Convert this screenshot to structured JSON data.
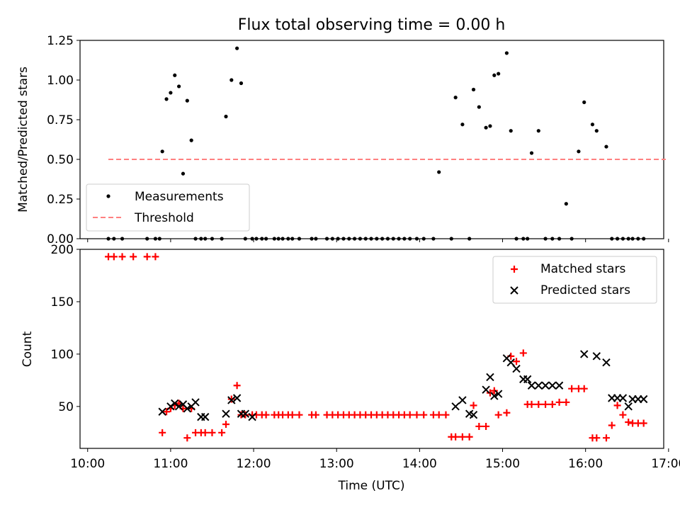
{
  "chart_data": [
    {
      "type": "scatter",
      "title": "Flux total observing time = 0.00 h",
      "xlabel": "",
      "ylabel": "Matched/Predicted stars",
      "xlim_minutes": [
        594.5,
        1016.5
      ],
      "ylim": [
        0,
        1.25
      ],
      "x_ticks_minutes": [
        600,
        660,
        720,
        780,
        840,
        900,
        960,
        1020
      ],
      "y_ticks": [
        0.0,
        0.25,
        0.5,
        0.75,
        1.0,
        1.25
      ],
      "y_tick_labels": [
        "0.00",
        "0.25",
        "0.50",
        "0.75",
        "1.00",
        "1.25"
      ],
      "legend": {
        "position": "lower-left",
        "entries": [
          "Measurements",
          "Threshold"
        ]
      },
      "threshold": {
        "name": "Threshold",
        "y": 0.5,
        "x_range_minutes": [
          615,
          1018
        ],
        "color": "#ff8080"
      },
      "series": [
        {
          "name": "Measurements",
          "color": "#000000",
          "x_minutes": [
            615,
            619,
            625,
            643,
            649,
            652,
            654,
            657,
            660,
            663,
            666,
            669,
            672,
            675,
            678,
            682,
            685,
            690,
            697,
            700,
            704,
            708,
            711,
            714,
            719,
            722,
            726,
            729,
            735,
            738,
            741,
            745,
            748,
            753,
            762,
            765,
            773,
            777,
            781,
            785,
            789,
            793,
            797,
            801,
            805,
            809,
            813,
            817,
            821,
            825,
            829,
            833,
            838,
            843,
            850,
            854,
            863,
            866,
            871,
            876,
            879,
            883,
            888,
            891,
            894,
            897,
            903,
            906,
            910,
            915,
            918,
            921,
            926,
            931,
            936,
            941,
            946,
            950,
            955,
            959,
            965,
            968,
            975,
            979,
            983,
            987,
            991,
            994,
            998,
            1002
          ],
          "y": [
            0,
            0,
            0,
            0,
            0,
            0,
            0.55,
            0.88,
            0.92,
            1.03,
            0.96,
            0.41,
            0.87,
            0.62,
            0,
            0,
            0,
            0,
            0,
            0.77,
            1.0,
            1.2,
            0.98,
            0,
            0,
            0,
            0,
            0,
            0,
            0,
            0,
            0,
            0,
            0,
            0,
            0,
            0,
            0,
            0,
            0,
            0,
            0,
            0,
            0,
            0,
            0,
            0,
            0,
            0,
            0,
            0,
            0,
            0,
            0,
            0,
            0.42,
            0,
            0.89,
            0.72,
            0,
            0.94,
            0.83,
            0.7,
            0.71,
            1.03,
            1.04,
            1.17,
            0.68,
            0,
            0,
            0,
            0.54,
            0.68,
            0,
            0,
            0,
            0.22,
            0,
            0.55,
            0.86,
            0.72,
            0.68,
            0.58,
            0,
            0,
            0,
            0,
            0,
            0,
            0
          ]
        }
      ]
    },
    {
      "type": "scatter",
      "title": "",
      "xlabel": "Time (UTC)",
      "ylabel": "Count",
      "xlim_minutes": [
        594.5,
        1016.5
      ],
      "ylim": [
        10,
        200
      ],
      "x_ticks_minutes": [
        600,
        660,
        720,
        780,
        840,
        900,
        960,
        1020
      ],
      "x_tick_labels": [
        "10:00",
        "11:00",
        "12:00",
        "13:00",
        "14:00",
        "15:00",
        "16:00",
        "17:00"
      ],
      "y_ticks": [
        50,
        100,
        150,
        200
      ],
      "legend": {
        "position": "top-right",
        "entries": [
          "Matched stars",
          "Predicted stars"
        ]
      },
      "series": [
        {
          "name": "Matched stars",
          "marker": "+",
          "color": "#ff0000",
          "x_minutes": [
            615,
            619,
            625,
            633,
            643,
            649,
            654,
            657,
            660,
            663,
            666,
            669,
            672,
            675,
            678,
            682,
            685,
            690,
            697,
            700,
            704,
            708,
            711,
            714,
            719,
            722,
            726,
            729,
            735,
            738,
            741,
            745,
            748,
            753,
            762,
            765,
            773,
            777,
            781,
            785,
            789,
            793,
            797,
            801,
            805,
            809,
            813,
            817,
            821,
            825,
            829,
            833,
            838,
            843,
            850,
            854,
            859,
            863,
            866,
            871,
            876,
            879,
            883,
            888,
            891,
            894,
            897,
            903,
            906,
            910,
            915,
            918,
            921,
            926,
            931,
            936,
            941,
            946,
            950,
            955,
            959,
            965,
            968,
            975,
            979,
            983,
            987,
            991,
            994,
            998,
            1002
          ],
          "y": [
            193,
            193,
            193,
            193,
            193,
            193,
            25,
            45,
            48,
            51,
            53,
            48,
            20,
            48,
            25,
            25,
            25,
            25,
            25,
            33,
            57,
            70,
            42,
            42,
            42,
            42,
            42,
            42,
            42,
            42,
            42,
            42,
            42,
            42,
            42,
            42,
            42,
            42,
            42,
            42,
            42,
            42,
            42,
            42,
            42,
            42,
            42,
            42,
            42,
            42,
            42,
            42,
            42,
            42,
            42,
            42,
            42,
            21,
            21,
            21,
            21,
            51,
            31,
            31,
            63,
            65,
            42,
            44,
            98,
            93,
            101,
            52,
            52,
            52,
            52,
            52,
            54,
            54,
            67,
            67,
            67,
            20,
            20,
            20,
            32,
            51,
            42,
            35,
            34,
            34,
            34
          ]
        },
        {
          "name": "Predicted stars",
          "marker": "x",
          "color": "#000000",
          "x_minutes": [
            654,
            660,
            663,
            666,
            669,
            672,
            675,
            678,
            682,
            685,
            700,
            704,
            708,
            711,
            714,
            719,
            866,
            871,
            876,
            879,
            888,
            891,
            894,
            897,
            903,
            906,
            910,
            915,
            918,
            921,
            926,
            931,
            936,
            941,
            959,
            968,
            975,
            979,
            983,
            987,
            991,
            994,
            998,
            1002
          ],
          "y": [
            45,
            50,
            53,
            50,
            52,
            48,
            50,
            54,
            40,
            40,
            43,
            56,
            58,
            43,
            43,
            40,
            50,
            56,
            43,
            42,
            66,
            78,
            60,
            62,
            96,
            92,
            86,
            76,
            76,
            70,
            70,
            70,
            70,
            70,
            100,
            98,
            92,
            58,
            58,
            58,
            50,
            57,
            57,
            57
          ]
        }
      ]
    }
  ]
}
